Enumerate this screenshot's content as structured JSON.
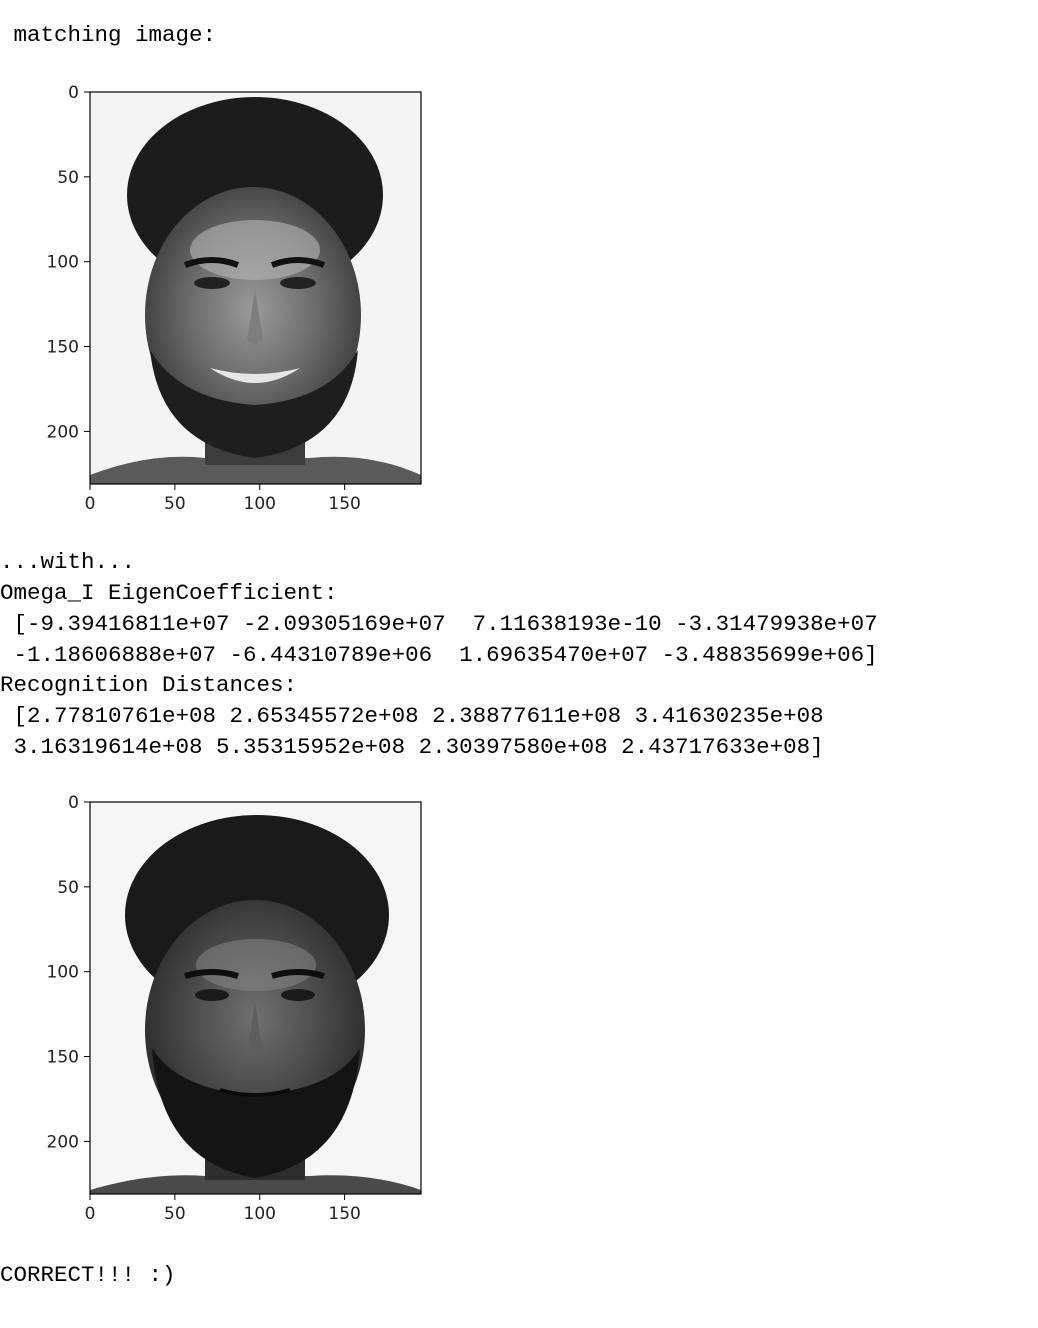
{
  "output": {
    "matching_label": " matching image:",
    "with_line": "...with...",
    "omega_label": "Omega_I EigenCoefficient:",
    "omega_lines": [
      " [-9.39416811e+07 -2.09305169e+07  7.11638193e-10 -3.31479938e+07",
      " -1.18606888e+07 -6.44310789e+06  1.69635470e+07 -3.48835699e+06]"
    ],
    "distances_label": "Recognition Distances:",
    "distances_lines": [
      " [2.77810761e+08 2.65345572e+08 2.38877611e+08 3.41630235e+08",
      " 3.16319614e+08 5.35315952e+08 2.30397580e+08 2.43717633e+08]"
    ],
    "result": "CORRECT!!! :)"
  },
  "plots": [
    {
      "name": "matching-image-plot",
      "depicts": "grayscale face photo, smiling man with curly hair and beard",
      "x_ticks": [
        0,
        50,
        100,
        150
      ],
      "y_ticks": [
        0,
        50,
        100,
        150,
        200
      ],
      "xlim": [
        0,
        195
      ],
      "ylim": [
        231,
        0
      ]
    },
    {
      "name": "test-image-plot",
      "depicts": "grayscale face photo, neutral man with curly hair and beard",
      "x_ticks": [
        0,
        50,
        100,
        150
      ],
      "y_ticks": [
        0,
        50,
        100,
        150,
        200
      ],
      "xlim": [
        0,
        195
      ],
      "ylim": [
        231,
        0
      ]
    }
  ],
  "colors": {
    "text": "#000000",
    "background": "#ffffff",
    "axis": "#000000"
  }
}
